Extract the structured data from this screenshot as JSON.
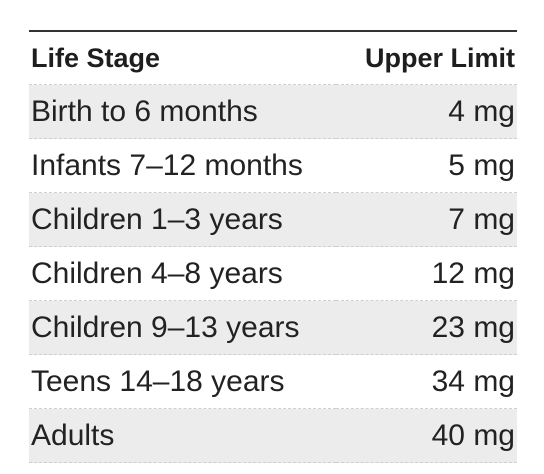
{
  "table": {
    "headers": {
      "stage": "Life Stage",
      "limit": "Upper Limit"
    },
    "rows": [
      {
        "stage": "Birth to 6 months",
        "limit": "4 mg"
      },
      {
        "stage": "Infants 7–12 months",
        "limit": "5 mg"
      },
      {
        "stage": "Children 1–3 years",
        "limit": "7 mg"
      },
      {
        "stage": "Children 4–8 years",
        "limit": "12 mg"
      },
      {
        "stage": "Children 9–13 years",
        "limit": "23 mg"
      },
      {
        "stage": "Teens 14–18 years",
        "limit": "34 mg"
      },
      {
        "stage": "Adults",
        "limit": "40 mg"
      }
    ]
  },
  "colors": {
    "shaded_row": "#ececec",
    "text": "#222222",
    "rule": "#333333"
  }
}
